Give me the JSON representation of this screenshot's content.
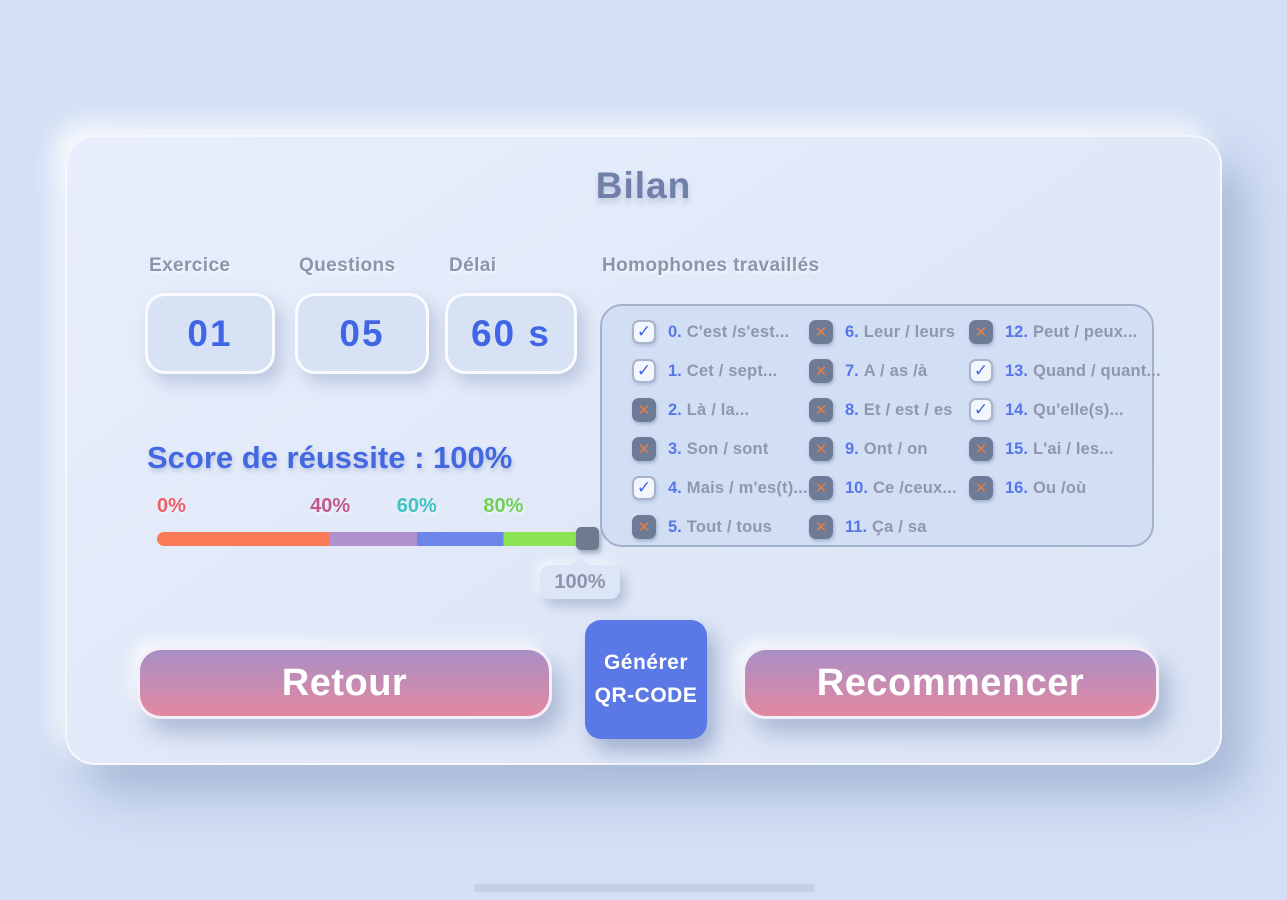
{
  "title": "Bilan",
  "stats": [
    {
      "label": "Exercice",
      "value": "01"
    },
    {
      "label": "Questions",
      "value": "05"
    },
    {
      "label": "Délai",
      "value": "60 s"
    }
  ],
  "homophones": {
    "label": "Homophones travaillés",
    "columns": [
      {
        "items": [
          {
            "num": "0.",
            "text": "C'est /s'est...",
            "state": "checked"
          },
          {
            "num": "1.",
            "text": "Cet / sept...",
            "state": "checked"
          },
          {
            "num": "2.",
            "text": "Là / la...",
            "state": "cross"
          },
          {
            "num": "3.",
            "text": "Son / sont",
            "state": "cross"
          },
          {
            "num": "4.",
            "text": "Mais / m'es(t)...",
            "state": "checked"
          },
          {
            "num": "5.",
            "text": "Tout / tous",
            "state": "cross"
          }
        ]
      },
      {
        "items": [
          {
            "num": "6.",
            "text": "Leur / leurs",
            "state": "cross"
          },
          {
            "num": "7.",
            "text": "A / as /à",
            "state": "cross"
          },
          {
            "num": "8.",
            "text": "Et / est / es",
            "state": "cross"
          },
          {
            "num": "9.",
            "text": "Ont / on",
            "state": "cross"
          },
          {
            "num": "10.",
            "text": "Ce /ceux...",
            "state": "cross"
          },
          {
            "num": "11.",
            "text": "Ça / sa",
            "state": "cross"
          }
        ]
      },
      {
        "items": [
          {
            "num": "12.",
            "text": "Peut / peux...",
            "state": "cross"
          },
          {
            "num": "13.",
            "text": "Quand / quant...",
            "state": "checked"
          },
          {
            "num": "14.",
            "text": "Qu'elle(s)...",
            "state": "checked"
          },
          {
            "num": "15.",
            "text": "L'ai / les...",
            "state": "cross"
          },
          {
            "num": "16.",
            "text": "Ou /où",
            "state": "cross"
          }
        ]
      }
    ]
  },
  "score": {
    "title": "Score de réussite : 100%",
    "value_percent": 100,
    "tooltip": "100%",
    "ticks": [
      {
        "label": "0%",
        "value": 0,
        "color": "#ef5e68"
      },
      {
        "label": "40%",
        "value": 40,
        "color": "#c05a8e"
      },
      {
        "label": "60%",
        "value": 60,
        "color": "#3ec2c4"
      },
      {
        "label": "80%",
        "value": 80,
        "color": "#71ce58"
      }
    ],
    "segments": [
      {
        "to": 40,
        "color": "#fb7a58"
      },
      {
        "to": 60,
        "color": "#b191cd"
      },
      {
        "to": 80,
        "color": "#6d86ea"
      },
      {
        "to": 100,
        "color": "#8ce455"
      }
    ]
  },
  "buttons": {
    "back": "Retour",
    "qr_line1": "Générer",
    "qr_line2": "QR-CODE",
    "restart": "Recommencer"
  },
  "colors": {
    "accent_blue": "#4066e6",
    "checkbox_slate": "#6d7b96",
    "cross_orange": "#e87f45",
    "check_blue": "#4066e6",
    "button_gradient_top": "#a98fc6",
    "button_gradient_bottom": "#e288a1",
    "qr_button_blue": "#5b79e6",
    "slider_handle": "#6e7a8e"
  }
}
